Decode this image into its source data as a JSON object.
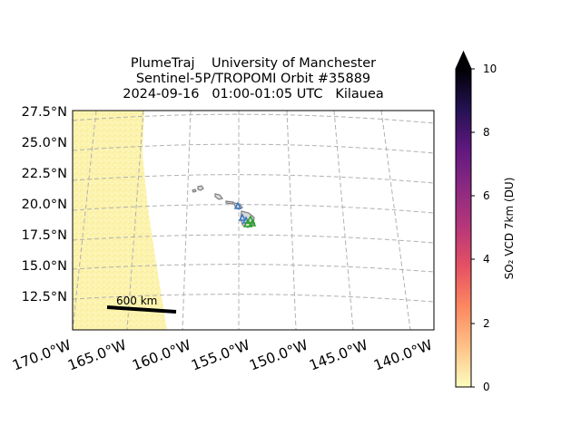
{
  "header": {
    "line1": "PlumeTraj    University of Manchester",
    "line2": "Sentinel-5P/TROPOMI Orbit #35889",
    "line3": "2024-09-16   01:00-01:05 UTC   Kilauea"
  },
  "map": {
    "lat_labels": [
      "27.5°N",
      "25.0°N",
      "22.5°N",
      "20.0°N",
      "17.5°N",
      "15.0°N",
      "12.5°N"
    ],
    "lon_labels": [
      "170.0°W",
      "165.0°W",
      "160.0°W",
      "155.0°W",
      "150.0°W",
      "145.0°W",
      "140.0°W"
    ],
    "scale_bar_label": "600 km",
    "swath_color": "#fcf5b0",
    "land_outline_color": "#7f7f7f",
    "gridline_color": "#b0b0b0",
    "marker_blue": "#3b78c4",
    "marker_green": "#2ca02c"
  },
  "colorbar": {
    "title": "SO₂ VCD 7km (DU)",
    "ticks": [
      "0",
      "2",
      "4",
      "6",
      "8",
      "10"
    ],
    "min": 0,
    "max": 10,
    "extend": "max",
    "colormap": "magma_r"
  }
}
